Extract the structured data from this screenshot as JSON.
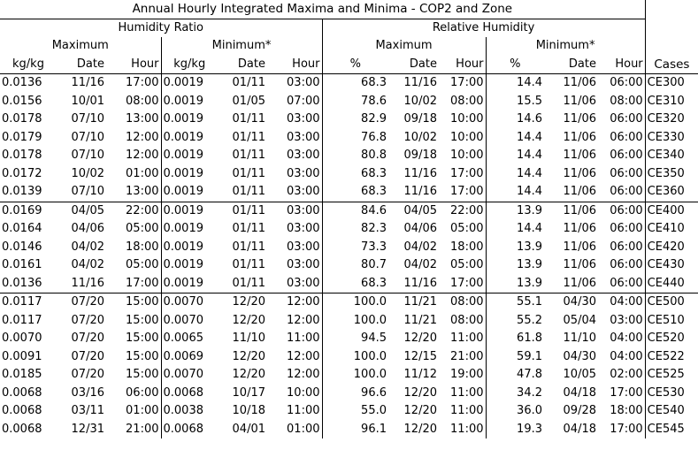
{
  "title": "Annual Hourly Integrated Maxima and Minima - COP2 and Zone",
  "headers": {
    "humidity_ratio": "Humidity Ratio",
    "relative_humidity": "Relative Humidity",
    "maximum": "Maximum",
    "minimum": "Minimum*",
    "cases": "Cases",
    "units": [
      "kg/kg",
      "Date",
      "Hour",
      "kg/kg",
      "Date",
      "Hour",
      "%",
      "Date",
      "Hour",
      "%",
      "Date",
      "Hour"
    ]
  },
  "groups": [
    {
      "rows": [
        [
          "0.0136",
          "11/16",
          "17:00",
          "0.0019",
          "01/11",
          "03:00",
          "68.3",
          "11/16",
          "17:00",
          "14.4",
          "11/06",
          "06:00",
          "CE300"
        ],
        [
          "0.0156",
          "10/01",
          "08:00",
          "0.0019",
          "01/05",
          "07:00",
          "78.6",
          "10/02",
          "08:00",
          "15.5",
          "11/06",
          "08:00",
          "CE310"
        ],
        [
          "0.0178",
          "07/10",
          "13:00",
          "0.0019",
          "01/11",
          "03:00",
          "82.9",
          "09/18",
          "10:00",
          "14.6",
          "11/06",
          "06:00",
          "CE320"
        ],
        [
          "0.0179",
          "07/10",
          "12:00",
          "0.0019",
          "01/11",
          "03:00",
          "76.8",
          "10/02",
          "10:00",
          "14.4",
          "11/06",
          "06:00",
          "CE330"
        ],
        [
          "0.0178",
          "07/10",
          "12:00",
          "0.0019",
          "01/11",
          "03:00",
          "80.8",
          "09/18",
          "10:00",
          "14.4",
          "11/06",
          "06:00",
          "CE340"
        ],
        [
          "0.0172",
          "10/02",
          "01:00",
          "0.0019",
          "01/11",
          "03:00",
          "68.3",
          "11/16",
          "17:00",
          "14.4",
          "11/06",
          "06:00",
          "CE350"
        ],
        [
          "0.0139",
          "07/10",
          "13:00",
          "0.0019",
          "01/11",
          "03:00",
          "68.3",
          "11/16",
          "17:00",
          "14.4",
          "11/06",
          "06:00",
          "CE360"
        ]
      ]
    },
    {
      "rows": [
        [
          "0.0169",
          "04/05",
          "22:00",
          "0.0019",
          "01/11",
          "03:00",
          "84.6",
          "04/05",
          "22:00",
          "13.9",
          "11/06",
          "06:00",
          "CE400"
        ],
        [
          "0.0164",
          "04/06",
          "05:00",
          "0.0019",
          "01/11",
          "03:00",
          "82.3",
          "04/06",
          "05:00",
          "14.4",
          "11/06",
          "06:00",
          "CE410"
        ],
        [
          "0.0146",
          "04/02",
          "18:00",
          "0.0019",
          "01/11",
          "03:00",
          "73.3",
          "04/02",
          "18:00",
          "13.9",
          "11/06",
          "06:00",
          "CE420"
        ],
        [
          "0.0161",
          "04/02",
          "05:00",
          "0.0019",
          "01/11",
          "03:00",
          "80.7",
          "04/02",
          "05:00",
          "13.9",
          "11/06",
          "06:00",
          "CE430"
        ],
        [
          "0.0136",
          "11/16",
          "17:00",
          "0.0019",
          "01/11",
          "03:00",
          "68.3",
          "11/16",
          "17:00",
          "13.9",
          "11/06",
          "06:00",
          "CE440"
        ]
      ]
    },
    {
      "rows": [
        [
          "0.0117",
          "07/20",
          "15:00",
          "0.0070",
          "12/20",
          "12:00",
          "100.0",
          "11/21",
          "08:00",
          "55.1",
          "04/30",
          "04:00",
          "CE500"
        ],
        [
          "0.0117",
          "07/20",
          "15:00",
          "0.0070",
          "12/20",
          "12:00",
          "100.0",
          "11/21",
          "08:00",
          "55.2",
          "05/04",
          "03:00",
          "CE510"
        ],
        [
          "0.0070",
          "07/20",
          "15:00",
          "0.0065",
          "11/10",
          "11:00",
          "94.5",
          "12/20",
          "11:00",
          "61.8",
          "11/10",
          "04:00",
          "CE520"
        ],
        [
          "0.0091",
          "07/20",
          "15:00",
          "0.0069",
          "12/20",
          "12:00",
          "100.0",
          "12/15",
          "21:00",
          "59.1",
          "04/30",
          "04:00",
          "CE522"
        ],
        [
          "0.0185",
          "07/20",
          "15:00",
          "0.0070",
          "12/20",
          "12:00",
          "100.0",
          "11/12",
          "19:00",
          "47.8",
          "10/05",
          "02:00",
          "CE525"
        ],
        [
          "0.0068",
          "03/16",
          "06:00",
          "0.0068",
          "10/17",
          "10:00",
          "96.6",
          "12/20",
          "11:00",
          "34.2",
          "04/18",
          "17:00",
          "CE530"
        ],
        [
          "0.0068",
          "03/11",
          "01:00",
          "0.0038",
          "10/18",
          "11:00",
          "55.0",
          "12/20",
          "11:00",
          "36.0",
          "09/28",
          "18:00",
          "CE540"
        ],
        [
          "0.0068",
          "12/31",
          "21:00",
          "0.0068",
          "04/01",
          "01:00",
          "96.1",
          "12/20",
          "11:00",
          "19.3",
          "04/18",
          "17:00",
          "CE545"
        ]
      ]
    }
  ]
}
